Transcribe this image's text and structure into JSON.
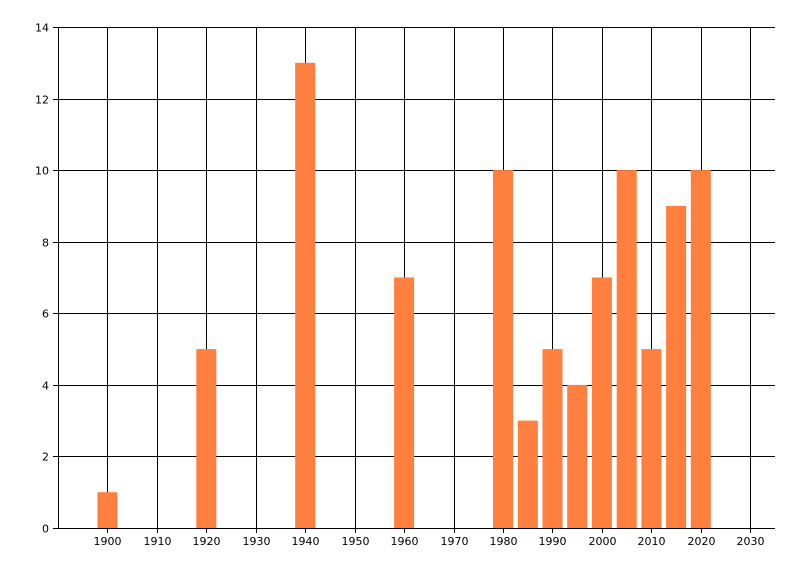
{
  "chart_data": {
    "type": "bar",
    "title": "",
    "xlabel": "",
    "ylabel": "",
    "x": [
      1900,
      1920,
      1940,
      1960,
      1980,
      1985,
      1990,
      1995,
      2000,
      2005,
      2010,
      2015,
      2020
    ],
    "values": [
      1,
      5,
      13,
      7,
      10,
      3,
      5,
      4,
      7,
      10,
      5,
      9,
      10
    ],
    "xlim": [
      1890,
      2035
    ],
    "ylim": [
      0,
      14
    ],
    "x_ticks": [
      1900,
      1910,
      1920,
      1930,
      1940,
      1950,
      1960,
      1970,
      1980,
      1990,
      2000,
      2010,
      2020,
      2030
    ],
    "y_ticks": [
      0,
      2,
      4,
      6,
      8,
      10,
      12,
      14
    ],
    "grid": true,
    "bar_color": "#FF7F3F",
    "grid_color": "#000000"
  }
}
